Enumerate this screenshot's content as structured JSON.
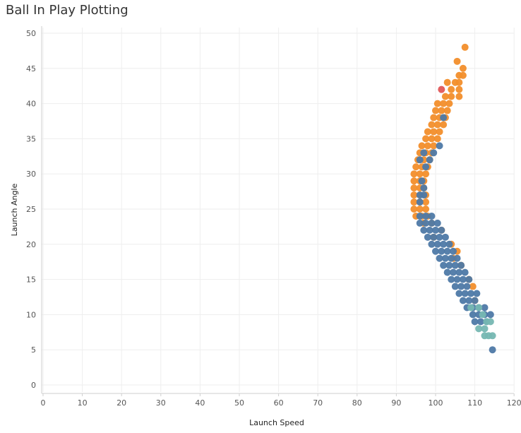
{
  "chart_data": {
    "type": "scatter",
    "title": "Ball In Play Plotting",
    "xlabel": "Launch Speed",
    "ylabel": "Launch Angle",
    "xlim": [
      0,
      120
    ],
    "ylim": [
      0,
      50
    ],
    "xticks": [
      0,
      10,
      20,
      30,
      40,
      50,
      60,
      70,
      80,
      90,
      100,
      110,
      120
    ],
    "yticks": [
      0,
      5,
      10,
      15,
      20,
      25,
      30,
      35,
      40,
      45,
      50
    ],
    "grid": true,
    "colors": {
      "orange": "#f28e2b",
      "blue": "#4e79a7",
      "teal": "#76b7b2",
      "red": "#e15759"
    },
    "series": [
      {
        "color_key": "orange",
        "points": [
          [
            107.5,
            48
          ],
          [
            105.5,
            46
          ],
          [
            107,
            45
          ],
          [
            106,
            44
          ],
          [
            107,
            44
          ],
          [
            103,
            43
          ],
          [
            105,
            43
          ],
          [
            106,
            43
          ],
          [
            104,
            42
          ],
          [
            106,
            42
          ],
          [
            102.5,
            41
          ],
          [
            104,
            41
          ],
          [
            106,
            41
          ],
          [
            100.5,
            40
          ],
          [
            102,
            40
          ],
          [
            103.5,
            40
          ],
          [
            100,
            39
          ],
          [
            101.5,
            39
          ],
          [
            103,
            39
          ],
          [
            99.5,
            38
          ],
          [
            101,
            38
          ],
          [
            102.5,
            38
          ],
          [
            99,
            37
          ],
          [
            100.5,
            37
          ],
          [
            102,
            37
          ],
          [
            98,
            36
          ],
          [
            99.5,
            36
          ],
          [
            101,
            36
          ],
          [
            97.5,
            35
          ],
          [
            99,
            35
          ],
          [
            100.5,
            35
          ],
          [
            96.5,
            34
          ],
          [
            98,
            34
          ],
          [
            99.5,
            34
          ],
          [
            96,
            33
          ],
          [
            97.5,
            33
          ],
          [
            99,
            33
          ],
          [
            95.5,
            32
          ],
          [
            97,
            32
          ],
          [
            98.5,
            32
          ],
          [
            95,
            31
          ],
          [
            96.5,
            31
          ],
          [
            98,
            31
          ],
          [
            94.5,
            30
          ],
          [
            96,
            30
          ],
          [
            97.5,
            30
          ],
          [
            94.5,
            29
          ],
          [
            96,
            29
          ],
          [
            97,
            29
          ],
          [
            94.5,
            28
          ],
          [
            96,
            28
          ],
          [
            97,
            28
          ],
          [
            94.5,
            27
          ],
          [
            96,
            27
          ],
          [
            97.5,
            27
          ],
          [
            94.5,
            26
          ],
          [
            96,
            26
          ],
          [
            97.5,
            26
          ],
          [
            94.5,
            25
          ],
          [
            96,
            25
          ],
          [
            97.5,
            25
          ],
          [
            95,
            24
          ],
          [
            96.5,
            24
          ],
          [
            98,
            24
          ],
          [
            97,
            23
          ],
          [
            99,
            23
          ],
          [
            101.5,
            22
          ],
          [
            99.5,
            21
          ],
          [
            104,
            20
          ],
          [
            105.5,
            19
          ],
          [
            104.5,
            18
          ],
          [
            106.5,
            17
          ],
          [
            108.5,
            15
          ],
          [
            109.5,
            14
          ],
          [
            110,
            12
          ]
        ]
      },
      {
        "color_key": "blue",
        "points": [
          [
            102,
            38
          ],
          [
            101,
            34
          ],
          [
            99.5,
            33
          ],
          [
            97,
            33
          ],
          [
            96,
            32
          ],
          [
            98.5,
            32
          ],
          [
            97.5,
            31
          ],
          [
            96.5,
            29
          ],
          [
            96,
            27
          ],
          [
            97,
            27
          ],
          [
            97,
            28
          ],
          [
            96,
            26
          ],
          [
            96,
            24
          ],
          [
            97.5,
            24
          ],
          [
            99,
            24
          ],
          [
            96,
            23
          ],
          [
            97.5,
            23
          ],
          [
            99,
            23
          ],
          [
            100.5,
            23
          ],
          [
            97,
            22
          ],
          [
            98.5,
            22
          ],
          [
            100,
            22
          ],
          [
            101.5,
            22
          ],
          [
            98,
            21
          ],
          [
            99.5,
            21
          ],
          [
            101,
            21
          ],
          [
            102.5,
            21
          ],
          [
            99,
            20
          ],
          [
            100.5,
            20
          ],
          [
            102,
            20
          ],
          [
            103.5,
            20
          ],
          [
            100,
            19
          ],
          [
            101.5,
            19
          ],
          [
            103,
            19
          ],
          [
            104.5,
            19
          ],
          [
            101,
            18
          ],
          [
            102.5,
            18
          ],
          [
            104,
            18
          ],
          [
            105.5,
            18
          ],
          [
            102,
            17
          ],
          [
            103.5,
            17
          ],
          [
            105,
            17
          ],
          [
            106.5,
            17
          ],
          [
            103,
            16
          ],
          [
            104.5,
            16
          ],
          [
            106,
            16
          ],
          [
            107.5,
            16
          ],
          [
            104,
            15
          ],
          [
            105.5,
            15
          ],
          [
            107,
            15
          ],
          [
            108.5,
            15
          ],
          [
            105,
            14
          ],
          [
            106.5,
            14
          ],
          [
            108,
            14
          ],
          [
            106,
            13
          ],
          [
            107.5,
            13
          ],
          [
            109,
            13
          ],
          [
            110.5,
            13
          ],
          [
            107,
            12
          ],
          [
            108.5,
            12
          ],
          [
            110,
            12
          ],
          [
            108,
            11
          ],
          [
            109.5,
            11
          ],
          [
            111,
            11
          ],
          [
            112.5,
            11
          ],
          [
            109.5,
            10
          ],
          [
            111,
            10
          ],
          [
            112.5,
            10
          ],
          [
            114,
            10
          ],
          [
            110,
            9
          ],
          [
            111.5,
            9
          ],
          [
            113,
            9
          ],
          [
            114.5,
            5
          ]
        ]
      },
      {
        "color_key": "teal",
        "points": [
          [
            109,
            11
          ],
          [
            111,
            11
          ],
          [
            112,
            10
          ],
          [
            113,
            9
          ],
          [
            114,
            9
          ],
          [
            111,
            8
          ],
          [
            112.5,
            8
          ],
          [
            113.5,
            7
          ],
          [
            112.5,
            7
          ],
          [
            114.5,
            7
          ]
        ]
      },
      {
        "color_key": "red",
        "points": [
          [
            101.5,
            42
          ]
        ]
      }
    ]
  }
}
